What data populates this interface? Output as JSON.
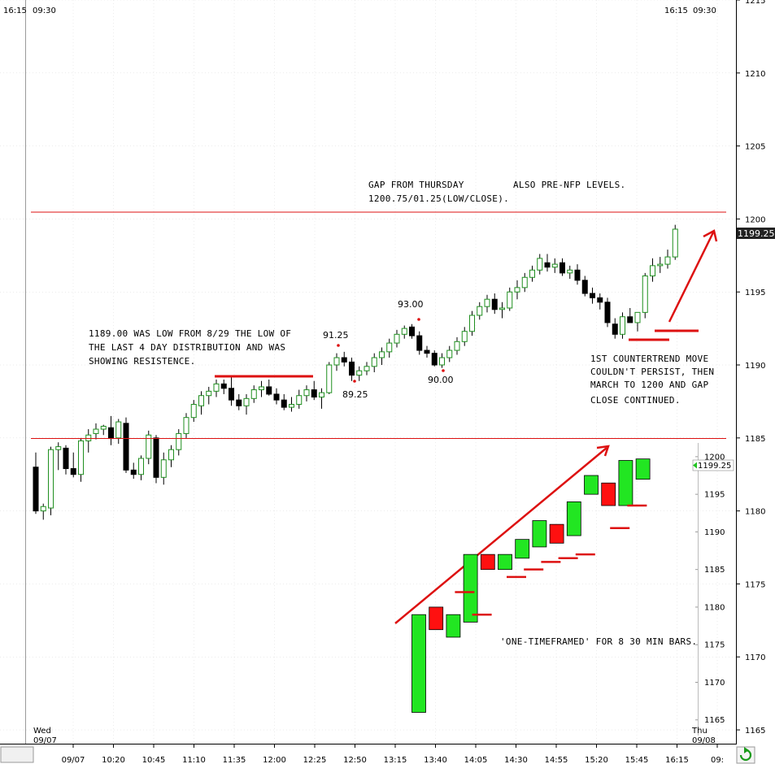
{
  "header": {
    "left_time": "16:15",
    "left_open": "09:30",
    "right_time": "16:15",
    "right_open": "09:30"
  },
  "footer": {
    "day_start": "Wed",
    "date_start": "09/07",
    "day_end": "Thu",
    "date_end": "09/08"
  },
  "chart_data": [
    {
      "type": "candlestick",
      "ylim": [
        1164,
        1215
      ],
      "yticks": [
        1165,
        1170,
        1175,
        1180,
        1185,
        1190,
        1195,
        1200,
        1205,
        1210,
        1215
      ],
      "x_tick_labels": [
        "09/07",
        "10:20",
        "10:45",
        "11:10",
        "11:35",
        "12:00",
        "12:25",
        "12:50",
        "13:15",
        "13:40",
        "14:05",
        "14:30",
        "14:55",
        "15:20",
        "15:45",
        "16:15",
        "09:"
      ],
      "price_label": "1199.25",
      "bar_minutes": 5,
      "bars": [
        [
          1183.0,
          1184.0,
          1179.8,
          1180.0
        ],
        [
          1180.0,
          1180.5,
          1179.4,
          1180.3
        ],
        [
          1180.2,
          1184.4,
          1179.7,
          1184.2
        ],
        [
          1184.2,
          1184.7,
          1182.8,
          1184.4
        ],
        [
          1184.3,
          1184.5,
          1182.5,
          1182.9
        ],
        [
          1182.9,
          1184.0,
          1182.3,
          1182.5
        ],
        [
          1182.5,
          1185.0,
          1182.0,
          1184.8
        ],
        [
          1184.8,
          1185.6,
          1184.0,
          1185.2
        ],
        [
          1185.3,
          1186.0,
          1184.9,
          1185.6
        ],
        [
          1185.6,
          1185.9,
          1185.2,
          1185.8
        ],
        [
          1185.7,
          1186.5,
          1184.5,
          1185.0
        ],
        [
          1185.0,
          1186.3,
          1184.6,
          1186.1
        ],
        [
          1186.0,
          1186.4,
          1182.6,
          1182.8
        ],
        [
          1182.8,
          1183.3,
          1182.2,
          1182.5
        ],
        [
          1182.5,
          1183.8,
          1182.1,
          1183.6
        ],
        [
          1183.6,
          1185.5,
          1183.2,
          1185.2
        ],
        [
          1185.0,
          1185.2,
          1181.9,
          1182.3
        ],
        [
          1182.3,
          1184.0,
          1181.8,
          1183.5
        ],
        [
          1183.5,
          1184.5,
          1183.0,
          1184.2
        ],
        [
          1184.2,
          1185.6,
          1183.8,
          1185.3
        ],
        [
          1185.3,
          1186.7,
          1185.0,
          1186.4
        ],
        [
          1186.4,
          1187.6,
          1186.1,
          1187.3
        ],
        [
          1187.2,
          1188.2,
          1186.6,
          1187.9
        ],
        [
          1187.9,
          1188.5,
          1187.3,
          1188.2
        ],
        [
          1188.2,
          1189.0,
          1187.8,
          1188.7
        ],
        [
          1188.7,
          1189.0,
          1188.0,
          1188.4
        ],
        [
          1188.4,
          1189.2,
          1187.2,
          1187.6
        ],
        [
          1187.6,
          1188.0,
          1186.9,
          1187.2
        ],
        [
          1187.2,
          1188.0,
          1186.6,
          1187.7
        ],
        [
          1187.7,
          1188.6,
          1187.4,
          1188.3
        ],
        [
          1188.3,
          1188.9,
          1187.8,
          1188.5
        ],
        [
          1188.5,
          1189.0,
          1187.9,
          1188.0
        ],
        [
          1188.0,
          1188.4,
          1187.3,
          1187.6
        ],
        [
          1187.6,
          1188.0,
          1186.9,
          1187.1
        ],
        [
          1187.1,
          1187.8,
          1186.8,
          1187.3
        ],
        [
          1187.3,
          1188.3,
          1187.0,
          1187.9
        ],
        [
          1187.9,
          1188.6,
          1187.5,
          1188.3
        ],
        [
          1188.3,
          1188.9,
          1187.6,
          1187.8
        ],
        [
          1187.8,
          1188.4,
          1187.0,
          1188.1
        ],
        [
          1188.1,
          1190.2,
          1188.0,
          1190.0
        ],
        [
          1190.0,
          1190.8,
          1189.6,
          1190.5
        ],
        [
          1190.5,
          1190.9,
          1189.9,
          1190.2
        ],
        [
          1190.2,
          1190.5,
          1188.9,
          1189.3
        ],
        [
          1189.3,
          1189.9,
          1188.9,
          1189.6
        ],
        [
          1189.6,
          1190.2,
          1189.3,
          1189.9
        ],
        [
          1189.9,
          1190.8,
          1189.5,
          1190.5
        ],
        [
          1190.5,
          1191.2,
          1190.0,
          1190.9
        ],
        [
          1190.9,
          1191.8,
          1190.5,
          1191.5
        ],
        [
          1191.5,
          1192.4,
          1191.2,
          1192.1
        ],
        [
          1192.1,
          1192.7,
          1191.8,
          1192.5
        ],
        [
          1192.6,
          1192.8,
          1191.8,
          1192.0
        ],
        [
          1192.0,
          1192.3,
          1190.7,
          1191.0
        ],
        [
          1191.0,
          1191.3,
          1190.5,
          1190.8
        ],
        [
          1190.8,
          1191.0,
          1189.9,
          1190.0
        ],
        [
          1190.0,
          1190.8,
          1189.8,
          1190.5
        ],
        [
          1190.5,
          1191.3,
          1190.2,
          1191.0
        ],
        [
          1191.0,
          1191.9,
          1190.7,
          1191.6
        ],
        [
          1191.6,
          1192.6,
          1191.3,
          1192.3
        ],
        [
          1192.3,
          1193.7,
          1192.0,
          1193.4
        ],
        [
          1193.4,
          1194.3,
          1193.1,
          1194.0
        ],
        [
          1194.0,
          1194.8,
          1193.6,
          1194.5
        ],
        [
          1194.5,
          1194.9,
          1193.5,
          1193.8
        ],
        [
          1193.8,
          1194.3,
          1193.2,
          1193.9
        ],
        [
          1193.9,
          1195.3,
          1193.7,
          1195.0
        ],
        [
          1195.0,
          1195.8,
          1194.5,
          1195.3
        ],
        [
          1195.3,
          1196.3,
          1195.0,
          1196.0
        ],
        [
          1196.0,
          1196.8,
          1195.7,
          1196.5
        ],
        [
          1196.5,
          1197.6,
          1196.2,
          1197.3
        ],
        [
          1197.0,
          1197.6,
          1196.4,
          1196.7
        ],
        [
          1196.7,
          1197.3,
          1196.3,
          1196.9
        ],
        [
          1197.0,
          1197.3,
          1196.1,
          1196.3
        ],
        [
          1196.3,
          1196.8,
          1195.9,
          1196.5
        ],
        [
          1196.5,
          1196.9,
          1195.5,
          1195.8
        ],
        [
          1195.8,
          1196.1,
          1194.7,
          1194.9
        ],
        [
          1194.9,
          1195.3,
          1194.2,
          1194.6
        ],
        [
          1194.6,
          1194.9,
          1193.8,
          1194.3
        ],
        [
          1194.3,
          1194.6,
          1192.6,
          1192.9
        ],
        [
          1192.8,
          1193.2,
          1191.8,
          1192.1
        ],
        [
          1192.1,
          1193.6,
          1191.8,
          1193.3
        ],
        [
          1193.3,
          1193.9,
          1192.9,
          1192.9
        ],
        [
          1192.9,
          1193.3,
          1192.3,
          1193.6
        ],
        [
          1193.6,
          1196.3,
          1193.2,
          1196.1
        ],
        [
          1196.1,
          1197.3,
          1195.7,
          1196.8
        ],
        [
          1196.8,
          1197.4,
          1196.3,
          1196.9
        ],
        [
          1196.9,
          1197.9,
          1196.6,
          1197.4
        ],
        [
          1197.4,
          1199.6,
          1197.2,
          1199.3
        ]
      ]
    },
    {
      "type": "candlestick",
      "ylim": [
        1164,
        1201.5
      ],
      "yticks": [
        1165,
        1170,
        1175,
        1180,
        1185,
        1190,
        1195,
        1200
      ],
      "price_label": "1199.25",
      "bar_minutes": 30,
      "bars": [
        [
          1166.0,
          1179.0,
          1166.0,
          1179.0
        ],
        [
          1180.0,
          1180.0,
          1177.0,
          1177.0
        ],
        [
          1176.0,
          1179.0,
          1176.0,
          1179.0
        ],
        [
          1178.0,
          1187.0,
          1178.0,
          1187.0
        ],
        [
          1187.0,
          1187.0,
          1185.0,
          1185.0
        ],
        [
          1185.0,
          1187.0,
          1185.0,
          1187.0
        ],
        [
          1186.5,
          1189.0,
          1186.5,
          1189.0
        ],
        [
          1188.0,
          1191.5,
          1188.0,
          1191.5
        ],
        [
          1191.0,
          1191.0,
          1188.5,
          1188.5
        ],
        [
          1189.5,
          1194.0,
          1189.5,
          1194.0
        ],
        [
          1195.0,
          1197.5,
          1195.0,
          1197.5
        ],
        [
          1196.5,
          1196.5,
          1193.5,
          1193.5
        ],
        [
          1193.5,
          1199.5,
          1193.5,
          1199.5
        ],
        [
          1197.0,
          1199.7,
          1197.0,
          1199.7
        ]
      ],
      "low_marks": [
        1182,
        1179,
        1184,
        1185,
        1186,
        1186.5,
        1187,
        1190.5,
        1193.5
      ]
    }
  ],
  "annotations": {
    "gap_line1": "GAP FROM THURSDAY",
    "gap_line2": "1200.75/01.25(LOW/CLOSE).",
    "pre_nfp": "ALSO PRE-NFP LEVELS.",
    "low_note_line1": "1189.00 WAS LOW FROM 8/29 THE LOW OF",
    "low_note_line2": "THE LAST 4 DAY DISTRIBUTION AND WAS",
    "low_note_line3": "SHOWING RESISTENCE.",
    "lbl_9125": "91.25",
    "lbl_8925": "89.25",
    "lbl_9300": "93.00",
    "lbl_9000": "90.00",
    "ct_line1": "1ST COUNTERTREND MOVE",
    "ct_line2": "COULDN'T PERSIST, THEN",
    "ct_line3": "MARCH TO 1200 AND GAP",
    "ct_line4": "CLOSE CONTINUED.",
    "otf_note": "'ONE-TIMEFRAMED' FOR 8 30 MIN BARS."
  },
  "colors": {
    "up": "#22e622",
    "down": "#000000",
    "inset_down": "#ff1010",
    "annotation": "#dd1111",
    "grid": "#d8d8d8"
  }
}
